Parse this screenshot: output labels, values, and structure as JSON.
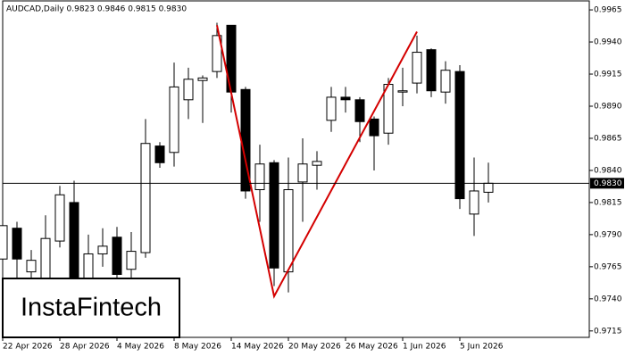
{
  "chart_data": {
    "type": "candlestick",
    "title": "AUDCAD,Daily  0.9823 0.9846 0.9815 0.9830",
    "watermark": "InstaFintech",
    "categories": [
      "22 Apr 2026",
      null,
      null,
      null,
      "28 Apr 2026",
      null,
      null,
      null,
      "4 May 2026",
      null,
      null,
      null,
      "8 May 2026",
      null,
      null,
      null,
      "14 May 2026",
      null,
      null,
      null,
      "20 May 2026",
      null,
      null,
      null,
      "26 May 2026",
      null,
      null,
      null,
      "1 Jun 2026",
      null,
      null,
      null,
      "5 Jun 2026",
      null,
      null
    ],
    "open": [
      0.9771,
      0.9795,
      0.9761,
      0.9752,
      0.9785,
      0.9815,
      0.973,
      0.9775,
      0.9788,
      0.9763,
      0.9776,
      0.9859,
      0.9854,
      0.9895,
      0.991,
      0.9917,
      0.9953,
      0.9903,
      0.9825,
      0.9846,
      0.9761,
      0.9831,
      0.9844,
      0.9879,
      0.9897,
      0.9895,
      0.988,
      0.9869,
      0.9901,
      0.9908,
      0.9934,
      0.9901,
      0.9917,
      0.9806,
      0.9823
    ],
    "high": [
      0.98,
      0.98,
      0.9778,
      0.9805,
      0.9828,
      0.9832,
      0.979,
      0.9795,
      0.9796,
      0.9792,
      0.988,
      0.9862,
      0.9924,
      0.992,
      0.9914,
      0.9955,
      0.9953,
      0.9905,
      0.986,
      0.9848,
      0.985,
      0.9865,
      0.9855,
      0.9905,
      0.9905,
      0.9897,
      0.9882,
      0.9912,
      0.992,
      0.9945,
      0.9935,
      0.9925,
      0.9922,
      0.985,
      0.9846
    ],
    "low": [
      0.976,
      0.9752,
      0.9754,
      0.9747,
      0.978,
      0.971,
      0.971,
      0.9765,
      0.9745,
      0.974,
      0.9772,
      0.9842,
      0.9843,
      0.988,
      0.9877,
      0.9912,
      0.9885,
      0.9818,
      0.98,
      0.975,
      0.9745,
      0.98,
      0.9825,
      0.987,
      0.9885,
      0.9862,
      0.984,
      0.986,
      0.989,
      0.99,
      0.9897,
      0.9892,
      0.981,
      0.9789,
      0.9815
    ],
    "close": [
      0.9797,
      0.9771,
      0.977,
      0.9787,
      0.9821,
      0.973,
      0.9775,
      0.9781,
      0.9759,
      0.9777,
      0.9861,
      0.9846,
      0.9905,
      0.9911,
      0.9912,
      0.9945,
      0.9901,
      0.9824,
      0.9845,
      0.9764,
      0.9825,
      0.9845,
      0.9847,
      0.9897,
      0.9895,
      0.9878,
      0.9867,
      0.9907,
      0.9902,
      0.9932,
      0.9902,
      0.9918,
      0.9818,
      0.9824,
      0.983
    ],
    "up_color": "#ffffff",
    "down_color": "#000000",
    "pattern": {
      "color": "#d40000",
      "index": [
        15,
        19,
        29
      ],
      "values": [
        0.9953,
        0.9742,
        0.9948
      ]
    },
    "current_price": {
      "value": 0.983,
      "label": "0.9830"
    },
    "ylim": [
      0.971,
      0.9972
    ],
    "yticks": [
      {
        "value": 0.9965,
        "label": "0.9965"
      },
      {
        "value": 0.994,
        "label": "0.9940"
      },
      {
        "value": 0.9915,
        "label": "0.9915"
      },
      {
        "value": 0.989,
        "label": "0.9890"
      },
      {
        "value": 0.9865,
        "label": "0.9865"
      },
      {
        "value": 0.984,
        "label": "0.9840"
      },
      {
        "value": 0.9815,
        "label": "0.9815"
      },
      {
        "value": 0.979,
        "label": "0.9790"
      },
      {
        "value": 0.9765,
        "label": "0.9765"
      },
      {
        "value": 0.974,
        "label": "0.9740"
      },
      {
        "value": 0.9715,
        "label": "0.9715"
      }
    ],
    "grid": false
  }
}
